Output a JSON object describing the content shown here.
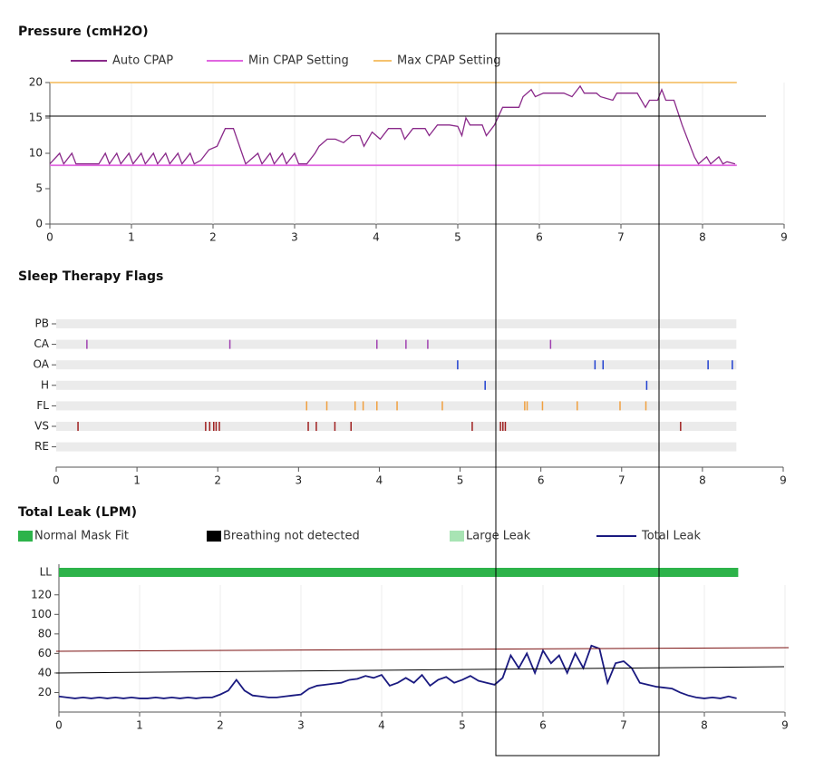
{
  "chart_data": [
    {
      "type": "line",
      "title": "Pressure (cmH2O)",
      "xlim": [
        0,
        9
      ],
      "xticks": [
        0,
        1,
        2,
        3,
        4,
        5,
        6,
        7,
        8,
        9
      ],
      "ylim": [
        0,
        20
      ],
      "yticks": [
        0,
        5,
        10,
        15,
        20
      ],
      "grid": true,
      "series": [
        {
          "name": "Auto CPAP",
          "color": "#8a2a8a",
          "x": [
            0,
            0.12,
            0.17,
            0.27,
            0.32,
            0.6,
            0.68,
            0.73,
            0.82,
            0.87,
            0.97,
            1.02,
            1.12,
            1.17,
            1.27,
            1.32,
            1.42,
            1.47,
            1.57,
            1.62,
            1.72,
            1.77,
            1.85,
            1.95,
            2.05,
            2.15,
            2.25,
            2.4,
            2.55,
            2.6,
            2.7,
            2.75,
            2.85,
            2.9,
            3.0,
            3.05,
            3.15,
            3.25,
            3.3,
            3.4,
            3.5,
            3.6,
            3.7,
            3.8,
            3.85,
            3.95,
            4.05,
            4.15,
            4.3,
            4.35,
            4.45,
            4.6,
            4.65,
            4.75,
            4.9,
            5.0,
            5.05,
            5.1,
            5.15,
            5.3,
            5.35,
            5.45,
            5.55,
            5.75,
            5.8,
            5.9,
            5.95,
            6.05,
            6.3,
            6.4,
            6.5,
            6.55,
            6.7,
            6.75,
            6.9,
            6.95,
            7.2,
            7.3,
            7.35,
            7.45,
            7.5,
            7.55,
            7.65,
            7.75,
            7.9,
            7.95,
            8.05,
            8.1,
            8.2,
            8.25,
            8.3,
            8.4
          ],
          "values": [
            8.5,
            10,
            8.5,
            10,
            8.5,
            8.5,
            10,
            8.5,
            10,
            8.5,
            10,
            8.5,
            10,
            8.5,
            10,
            8.5,
            10,
            8.5,
            10,
            8.5,
            10,
            8.5,
            9,
            10.5,
            11,
            13.5,
            13.5,
            8.5,
            10,
            8.5,
            10,
            8.5,
            10,
            8.5,
            10,
            8.5,
            8.5,
            10,
            11,
            12,
            12,
            11.5,
            12.5,
            12.5,
            11,
            13,
            12,
            13.5,
            13.5,
            12,
            13.5,
            13.5,
            12.5,
            14,
            14,
            13.8,
            12.5,
            15,
            14,
            14,
            12.5,
            14,
            16.5,
            16.5,
            18,
            19,
            18,
            18.5,
            18.5,
            18,
            19.5,
            18.5,
            18.5,
            18,
            17.5,
            18.5,
            18.5,
            16.5,
            17.5,
            17.5,
            19,
            17.5,
            17.5,
            14,
            9.5,
            8.5,
            9.5,
            8.5,
            9.5,
            8.5,
            8.8,
            8.5
          ]
        },
        {
          "name": "Min CPAP Setting",
          "color": "#e066e0",
          "x": [
            0,
            8.42
          ],
          "values": [
            8.3,
            8.3
          ]
        },
        {
          "name": "Max CPAP Setting",
          "color": "#f5c26e",
          "x": [
            0,
            8.42
          ],
          "values": [
            20,
            20
          ]
        }
      ]
    },
    {
      "type": "event",
      "title": "Sleep Therapy Flags",
      "xlim": [
        0,
        9
      ],
      "xticks": [
        0,
        1,
        2,
        3,
        4,
        5,
        6,
        7,
        8,
        9
      ],
      "xmax_row": 8.42,
      "categories": [
        "PB",
        "CA",
        "OA",
        "H",
        "FL",
        "VS",
        "RE"
      ],
      "series": [
        {
          "color": "#8040a0",
          "x": []
        },
        {
          "color": "#a040b0",
          "x": [
            0.38,
            2.15,
            3.97,
            4.33,
            4.6,
            6.12
          ]
        },
        {
          "color": "#2040d0",
          "x": [
            4.97,
            6.67,
            6.77,
            8.07,
            8.37
          ]
        },
        {
          "color": "#2040d0",
          "x": [
            5.31,
            7.31
          ]
        },
        {
          "color": "#f0a040",
          "x": [
            3.1,
            3.35,
            3.7,
            3.8,
            3.97,
            4.22,
            4.78,
            5.8,
            5.83,
            6.02,
            6.45,
            6.98,
            7.3
          ]
        },
        {
          "color": "#a02020",
          "x": [
            0.27,
            1.85,
            1.9,
            1.95,
            1.98,
            2.02,
            3.12,
            3.22,
            3.45,
            3.65,
            5.15,
            5.5,
            5.53,
            5.56,
            7.73
          ]
        },
        {
          "color": "#808080",
          "x": []
        }
      ]
    },
    {
      "type": "line",
      "title": "Total Leak (LPM)",
      "band_label": "LL",
      "xlim": [
        0,
        9
      ],
      "xticks": [
        0,
        1,
        2,
        3,
        4,
        5,
        6,
        7,
        8,
        9
      ],
      "ylim": [
        0,
        130
      ],
      "yticks": [
        20,
        40,
        60,
        80,
        100,
        120
      ],
      "grid": true,
      "series": [
        {
          "name": "Normal Mask Fit",
          "color": "#2db34a",
          "range": [
            0,
            8.42
          ]
        },
        {
          "name": "Breathing not detected",
          "color": "#000000"
        },
        {
          "name": "Large Leak",
          "color": "#a8e4b4"
        },
        {
          "name": "Total Leak",
          "color": "#1a1a80",
          "x": [
            0,
            0.1,
            0.2,
            0.3,
            0.4,
            0.5,
            0.6,
            0.7,
            0.8,
            0.9,
            1.0,
            1.1,
            1.2,
            1.3,
            1.4,
            1.5,
            1.6,
            1.7,
            1.8,
            1.9,
            2.0,
            2.1,
            2.2,
            2.3,
            2.4,
            2.5,
            2.6,
            2.7,
            2.8,
            2.9,
            3.0,
            3.1,
            3.2,
            3.3,
            3.4,
            3.5,
            3.6,
            3.7,
            3.8,
            3.9,
            4.0,
            4.1,
            4.2,
            4.3,
            4.4,
            4.5,
            4.6,
            4.7,
            4.8,
            4.9,
            5.0,
            5.1,
            5.2,
            5.3,
            5.4,
            5.5,
            5.6,
            5.7,
            5.8,
            5.9,
            6.0,
            6.1,
            6.2,
            6.3,
            6.4,
            6.5,
            6.6,
            6.7,
            6.8,
            6.9,
            7.0,
            7.1,
            7.2,
            7.3,
            7.4,
            7.5,
            7.6,
            7.7,
            7.8,
            7.9,
            8.0,
            8.1,
            8.2,
            8.3,
            8.4
          ],
          "values": [
            16,
            15,
            14,
            15,
            14,
            15,
            14,
            15,
            14,
            15,
            14,
            14,
            15,
            14,
            15,
            14,
            15,
            14,
            15,
            15,
            18,
            22,
            33,
            22,
            17,
            16,
            15,
            15,
            16,
            17,
            18,
            24,
            27,
            28,
            29,
            30,
            33,
            34,
            37,
            35,
            38,
            27,
            30,
            35,
            30,
            38,
            27,
            33,
            36,
            30,
            33,
            37,
            32,
            30,
            28,
            35,
            58,
            45,
            60,
            40,
            63,
            50,
            58,
            40,
            60,
            45,
            68,
            65,
            30,
            50,
            52,
            45,
            30,
            28,
            26,
            25,
            24,
            20,
            17,
            15,
            14,
            15,
            14,
            16,
            14
          ]
        }
      ]
    }
  ]
}
